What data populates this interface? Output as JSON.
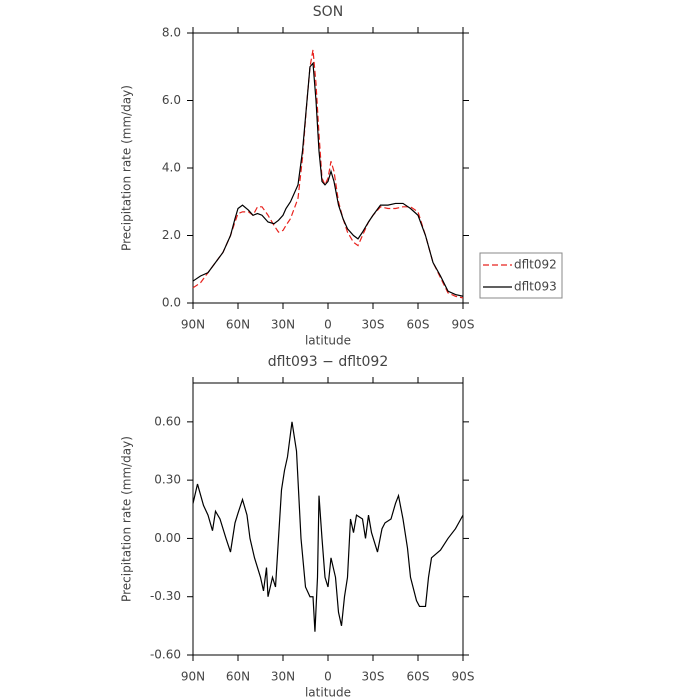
{
  "chart_data": [
    {
      "type": "line",
      "title": "SON",
      "xlabel": "latitude",
      "ylabel": "Precipitation rate (mm/day)",
      "xlim": [
        90,
        -90
      ],
      "xticks": [
        {
          "value": 90,
          "label": "90N"
        },
        {
          "value": 60,
          "label": "60N"
        },
        {
          "value": 30,
          "label": "30N"
        },
        0,
        {
          "value": -30,
          "label": "30S"
        },
        {
          "value": -60,
          "label": "60S"
        },
        {
          "value": -90,
          "label": "90S"
        }
      ],
      "ylim": [
        0,
        8
      ],
      "yticks": [
        {
          "value": 0,
          "label": "0.0"
        },
        {
          "value": 2,
          "label": "2.0"
        },
        {
          "value": 4,
          "label": "4.0"
        },
        {
          "value": 6,
          "label": "6.0"
        },
        {
          "value": 8,
          "label": "8.0"
        }
      ],
      "legend": "right",
      "x": [
        90,
        85,
        80,
        75,
        70,
        65,
        62,
        60,
        57,
        53,
        50,
        47,
        44,
        40,
        36,
        33,
        30,
        28,
        25,
        20,
        17,
        14,
        12,
        10,
        8,
        6,
        4,
        2,
        0,
        -2,
        -4,
        -7,
        -10,
        -13,
        -17,
        -20,
        -23,
        -27,
        -30,
        -35,
        -40,
        -45,
        -50,
        -55,
        -60,
        -65,
        -70,
        -75,
        -80,
        -85,
        -90
      ],
      "series": [
        {
          "name": "dflt092",
          "color": "#e8231e",
          "dashed": true,
          "values": [
            0.45,
            0.6,
            0.9,
            1.2,
            1.5,
            2.0,
            2.4,
            2.65,
            2.7,
            2.7,
            2.6,
            2.85,
            2.85,
            2.6,
            2.3,
            2.1,
            2.15,
            2.3,
            2.5,
            3.1,
            4.3,
            6.0,
            7.0,
            7.5,
            6.5,
            5.0,
            3.7,
            3.5,
            3.7,
            4.2,
            3.9,
            3.0,
            2.5,
            2.1,
            1.8,
            1.7,
            2.0,
            2.4,
            2.6,
            2.85,
            2.8,
            2.8,
            2.85,
            2.85,
            2.7,
            2.0,
            1.2,
            0.75,
            0.3,
            0.2,
            0.15
          ]
        },
        {
          "name": "dflt093",
          "color": "#000000",
          "dashed": false,
          "values": [
            0.65,
            0.8,
            0.9,
            1.2,
            1.5,
            2.0,
            2.5,
            2.8,
            2.9,
            2.75,
            2.6,
            2.65,
            2.6,
            2.4,
            2.35,
            2.45,
            2.6,
            2.8,
            3.0,
            3.5,
            4.5,
            6.0,
            7.0,
            7.1,
            6.0,
            4.5,
            3.6,
            3.5,
            3.6,
            3.9,
            3.6,
            2.9,
            2.5,
            2.2,
            2.0,
            1.9,
            2.1,
            2.4,
            2.6,
            2.9,
            2.9,
            2.95,
            2.95,
            2.8,
            2.6,
            2.0,
            1.2,
            0.8,
            0.35,
            0.25,
            0.2
          ]
        }
      ]
    },
    {
      "type": "line",
      "title": "dflt093 − dflt092",
      "xlabel": "latitude",
      "ylabel": "Precipitation rate (mm/day)",
      "xlim": [
        90,
        -90
      ],
      "xticks": [
        {
          "value": 90,
          "label": "90N"
        },
        {
          "value": 60,
          "label": "60N"
        },
        {
          "value": 30,
          "label": "30N"
        },
        0,
        {
          "value": -30,
          "label": "30S"
        },
        {
          "value": -60,
          "label": "60S"
        },
        {
          "value": -90,
          "label": "90S"
        }
      ],
      "ylim": [
        -0.6,
        0.8
      ],
      "yticks": [
        {
          "value": -0.6,
          "label": "-0.60"
        },
        {
          "value": -0.3,
          "label": "-0.30"
        },
        {
          "value": 0,
          "label": "0.00"
        },
        {
          "value": 0.3,
          "label": "0.30"
        },
        {
          "value": 0.6,
          "label": "0.60"
        }
      ],
      "x": [
        90,
        87,
        83,
        80,
        77,
        75,
        72,
        68,
        65,
        62,
        60,
        57,
        54,
        52,
        49,
        45,
        43,
        41,
        40,
        37,
        35,
        33,
        31,
        29,
        27,
        24,
        21,
        20,
        18,
        15,
        12,
        10,
        8.7,
        7,
        6,
        4,
        2,
        0,
        -2,
        -5,
        -7,
        -9,
        -11,
        -13,
        -15,
        -17,
        -19,
        -23,
        -25,
        -27,
        -29,
        -33,
        -36,
        -38,
        -42,
        -45,
        -47,
        -50,
        -53,
        -55,
        -59,
        -61,
        -65,
        -67,
        -69,
        -72,
        -75,
        -80,
        -85,
        -90
      ],
      "series": [
        {
          "color": "#000000",
          "dashed": false,
          "values": [
            0.18,
            0.28,
            0.17,
            0.12,
            0.04,
            0.14,
            0.1,
            0.0,
            -0.07,
            0.08,
            0.13,
            0.2,
            0.12,
            0.0,
            -0.1,
            -0.2,
            -0.27,
            -0.15,
            -0.3,
            -0.2,
            -0.25,
            0.0,
            0.25,
            0.35,
            0.42,
            0.6,
            0.45,
            0.3,
            0.0,
            -0.25,
            -0.3,
            -0.3,
            -0.48,
            -0.2,
            0.22,
            0.0,
            -0.2,
            -0.25,
            -0.1,
            -0.2,
            -0.38,
            -0.45,
            -0.3,
            -0.2,
            0.1,
            0.03,
            0.12,
            0.1,
            0.0,
            0.12,
            0.03,
            -0.07,
            0.05,
            0.08,
            0.1,
            0.18,
            0.22,
            0.1,
            -0.05,
            -0.2,
            -0.32,
            -0.35,
            -0.35,
            -0.2,
            -0.1,
            -0.08,
            -0.06,
            0.0,
            0.05,
            0.12
          ]
        }
      ]
    }
  ]
}
